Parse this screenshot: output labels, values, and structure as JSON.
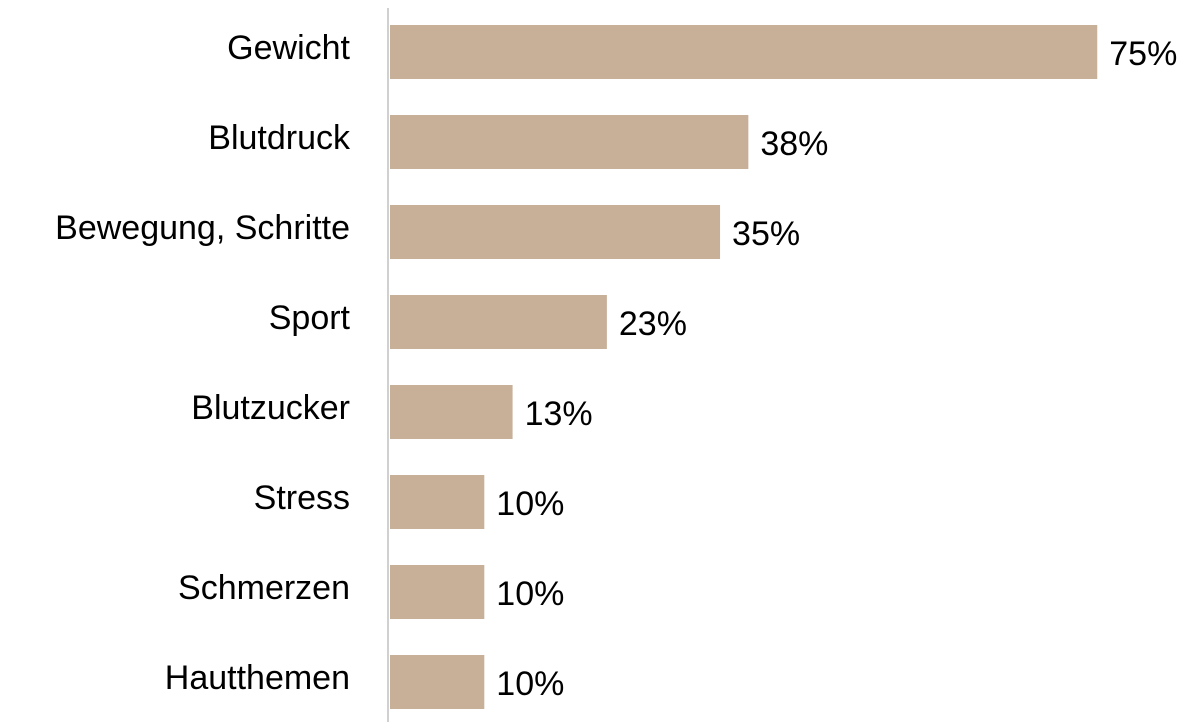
{
  "chart_data": {
    "type": "bar",
    "orientation": "horizontal",
    "categories": [
      "Gewicht",
      "Blutdruck",
      "Bewegung, Schritte",
      "Sport",
      "Blutzucker",
      "Stress",
      "Schmerzen",
      "Hautthemen"
    ],
    "values": [
      75,
      38,
      35,
      23,
      13,
      10,
      10,
      10
    ],
    "value_labels": [
      "75%",
      "38%",
      "35%",
      "23%",
      "13%",
      "10%",
      "10%",
      "10%"
    ],
    "color": "#c8b098"
  }
}
